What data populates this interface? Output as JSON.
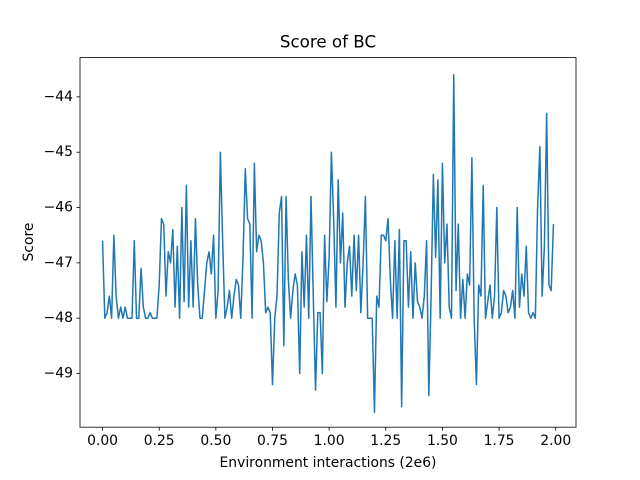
{
  "chart_data": {
    "type": "line",
    "title": "Score of BC",
    "x_label": "Environment interactions (2e6)",
    "y_label": "Score",
    "x": [
      0,
      0.01,
      0.02,
      0.03,
      0.04,
      0.05,
      0.06,
      0.07,
      0.08,
      0.09,
      0.1,
      0.11,
      0.12,
      0.13,
      0.14,
      0.15,
      0.16,
      0.17,
      0.18,
      0.19,
      0.2,
      0.21,
      0.22,
      0.23,
      0.24,
      0.25,
      0.26,
      0.27,
      0.28,
      0.29,
      0.3,
      0.31,
      0.32,
      0.33,
      0.34,
      0.35,
      0.36,
      0.37,
      0.38,
      0.39,
      0.4,
      0.41,
      0.42,
      0.43,
      0.44,
      0.45,
      0.46,
      0.47,
      0.48,
      0.49,
      0.5,
      0.51,
      0.52,
      0.53,
      0.54,
      0.55,
      0.56,
      0.57,
      0.58,
      0.59,
      0.6,
      0.61,
      0.62,
      0.63,
      0.64,
      0.65,
      0.66,
      0.67,
      0.68,
      0.69,
      0.7,
      0.71,
      0.72,
      0.73,
      0.74,
      0.75,
      0.76,
      0.77,
      0.78,
      0.79,
      0.8,
      0.81,
      0.82,
      0.83,
      0.84,
      0.85,
      0.86,
      0.87,
      0.88,
      0.89,
      0.9,
      0.91,
      0.92,
      0.93,
      0.94,
      0.95,
      0.96,
      0.97,
      0.98,
      0.99,
      1,
      1.01,
      1.02,
      1.03,
      1.04,
      1.05,
      1.06,
      1.07,
      1.08,
      1.09,
      1.1,
      1.11,
      1.12,
      1.13,
      1.14,
      1.15,
      1.16,
      1.17,
      1.18,
      1.19,
      1.2,
      1.21,
      1.22,
      1.23,
      1.24,
      1.25,
      1.26,
      1.27,
      1.28,
      1.29,
      1.3,
      1.31,
      1.32,
      1.33,
      1.34,
      1.35,
      1.36,
      1.37,
      1.38,
      1.39,
      1.4,
      1.41,
      1.42,
      1.43,
      1.44,
      1.45,
      1.46,
      1.47,
      1.48,
      1.49,
      1.5,
      1.51,
      1.52,
      1.53,
      1.54,
      1.55,
      1.56,
      1.57,
      1.58,
      1.59,
      1.6,
      1.61,
      1.62,
      1.63,
      1.64,
      1.65,
      1.66,
      1.67,
      1.68,
      1.69,
      1.7,
      1.71,
      1.72,
      1.73,
      1.74,
      1.75,
      1.76,
      1.77,
      1.78,
      1.79,
      1.8,
      1.81,
      1.82,
      1.83,
      1.84,
      1.85,
      1.86,
      1.87,
      1.88,
      1.89,
      1.9,
      1.91,
      1.92,
      1.93,
      1.94,
      1.95,
      1.96,
      1.97,
      1.98,
      1.99
    ],
    "series": [
      {
        "color": "#1f77b4",
        "values": [
          -46.6,
          -48,
          -47.9,
          -47.6,
          -48,
          -46.5,
          -47.6,
          -48,
          -47.8,
          -48,
          -47.8,
          -48,
          -48,
          -48,
          -46.6,
          -48,
          -48,
          -47.1,
          -47.8,
          -48,
          -48,
          -47.9,
          -48,
          -48,
          -48,
          -47.4,
          -46.2,
          -46.3,
          -47.6,
          -46.8,
          -47,
          -46.4,
          -47.8,
          -46.7,
          -48,
          -46,
          -47.7,
          -45.6,
          -47.8,
          -46.6,
          -47.8,
          -46.2,
          -47.4,
          -48,
          -48,
          -47.5,
          -47,
          -46.8,
          -47.2,
          -46.5,
          -48,
          -47.5,
          -45,
          -46.6,
          -48,
          -47.8,
          -47.5,
          -48,
          -47.6,
          -47.3,
          -47.4,
          -48,
          -46.9,
          -45.3,
          -46.2,
          -46.3,
          -48,
          -45.2,
          -46.8,
          -46.5,
          -46.6,
          -47,
          -47.9,
          -47.8,
          -47.9,
          -49.2,
          -48,
          -47.6,
          -46.1,
          -45.8,
          -48.5,
          -45.8,
          -47.3,
          -48,
          -47.5,
          -47.2,
          -47.4,
          -49,
          -46.8,
          -47.8,
          -46.5,
          -48,
          -45.8,
          -47.6,
          -49.3,
          -47.9,
          -47.9,
          -49,
          -46.5,
          -47.7,
          -46.9,
          -45,
          -46.2,
          -47.8,
          -45.5,
          -47,
          -46.1,
          -47.8,
          -47,
          -46.7,
          -47.6,
          -46.5,
          -47.5,
          -46.5,
          -47.9,
          -47,
          -45.8,
          -48,
          -48,
          -48,
          -49.7,
          -47.6,
          -47.8,
          -46.5,
          -46.5,
          -46.6,
          -46.2,
          -47.3,
          -48,
          -46.6,
          -48,
          -46.4,
          -49.6,
          -46.6,
          -46.6,
          -47.8,
          -46.8,
          -48,
          -47,
          -47.7,
          -47.8,
          -48,
          -47.6,
          -46.6,
          -49.4,
          -47.6,
          -45.4,
          -46.9,
          -45.5,
          -48,
          -45.2,
          -47,
          -46.3,
          -47.8,
          -48,
          -43.6,
          -47.5,
          -46.3,
          -48,
          -47.3,
          -48,
          -47.2,
          -47.4,
          -45.1,
          -48,
          -49.2,
          -47.4,
          -47.6,
          -45.6,
          -48,
          -47.7,
          -47.4,
          -48,
          -47.6,
          -46,
          -48,
          -47.9,
          -47.5,
          -47.6,
          -47.9,
          -47.8,
          -47.5,
          -48,
          -46,
          -47.8,
          -47.2,
          -47.6,
          -46.7,
          -47.9,
          -48,
          -47.9,
          -48,
          -46,
          -44.9,
          -47.6,
          -46.7,
          -44.3,
          -47.4,
          -47.5,
          -46.3
        ]
      }
    ],
    "xlim": [
      -0.0995,
      2.0895
    ],
    "ylim": [
      -49.97,
      -43.29
    ],
    "xticks": [
      {
        "value": 0,
        "label": "0.00"
      },
      0.25,
      {
        "value": 0.5,
        "label": "0.50"
      },
      0.75,
      {
        "value": 1,
        "label": "1.00"
      },
      1.25,
      {
        "value": 1.5,
        "label": "1.50"
      },
      1.75,
      {
        "value": 2,
        "label": "2.00"
      }
    ],
    "yticks": [
      {
        "value": -49,
        "label": "−49"
      },
      {
        "value": -48,
        "label": "−48"
      },
      {
        "value": -47,
        "label": "−47"
      },
      {
        "value": -46,
        "label": "−46"
      },
      {
        "value": -45,
        "label": "−45"
      },
      {
        "value": -44,
        "label": "−44"
      }
    ]
  }
}
